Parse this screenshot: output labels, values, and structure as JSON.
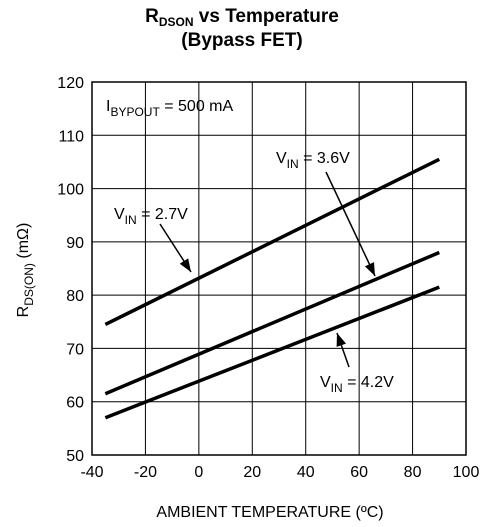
{
  "title": {
    "main": "R",
    "sub": "DSON",
    "rest": " vs Temperature"
  },
  "subtitle": "(Bypass FET)",
  "chart_data": {
    "type": "line",
    "title": "RDSON vs Temperature (Bypass FET)",
    "xlabel": "AMBIENT TEMPERATURE (ºC)",
    "ylabel": {
      "main": "R",
      "sub": "DS(ON)",
      "unit": " (mΩ)"
    },
    "xlim": [
      -40,
      100
    ],
    "ylim": [
      50,
      120
    ],
    "xticks": [
      -40,
      -20,
      0,
      20,
      40,
      60,
      80,
      100
    ],
    "yticks": [
      50,
      60,
      70,
      80,
      90,
      100,
      110,
      120
    ],
    "grid": true,
    "condition": {
      "main": "I",
      "sub": "BYPOUT",
      "rest": " = 500 mA"
    },
    "series": [
      {
        "name": "VIN = 2.7V",
        "label": {
          "main": "V",
          "sub": "IN",
          "rest": " = 2.7V"
        },
        "x": [
          -35,
          90
        ],
        "y": [
          74.5,
          105.5
        ]
      },
      {
        "name": "VIN = 3.6V",
        "label": {
          "main": "V",
          "sub": "IN",
          "rest": " = 3.6V"
        },
        "x": [
          -35,
          90
        ],
        "y": [
          61.5,
          88
        ]
      },
      {
        "name": "VIN = 4.2V",
        "label": {
          "main": "V",
          "sub": "IN",
          "rest": " = 4.2V"
        },
        "x": [
          -35,
          90
        ],
        "y": [
          57,
          81.5
        ]
      }
    ]
  }
}
